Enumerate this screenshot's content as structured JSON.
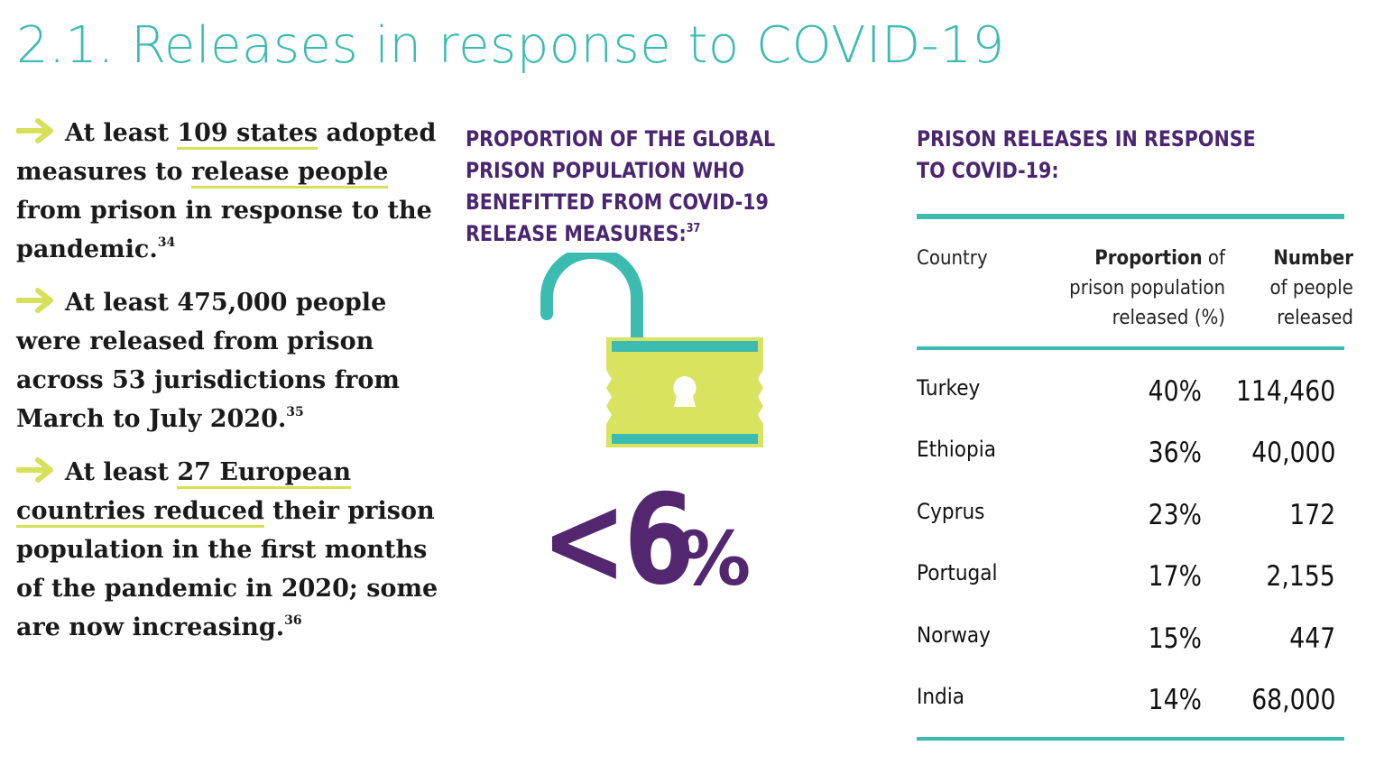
{
  "title": "2.1. Releases in response to COVID-19",
  "colors": {
    "teal": "#3cbcb0",
    "purple": "#4a2570",
    "lime": "#d6e159",
    "lime_fill": "#d8e35f"
  },
  "bullets": [
    {
      "lead": "At least ",
      "hl1": "109 states",
      "mid1": " adopted measures to ",
      "hl2": "release people",
      "tail": " from prison in response to the pandemic.",
      "ref": "34"
    },
    {
      "text": "At least 475,000 people were released from prison across 53 jurisdictions from March to July 2020.",
      "ref": "35"
    },
    {
      "lead": "At least ",
      "hl1": "27 European countries reduced",
      "tail": " their prison population in the first months of the pandemic in 2020; some are now increasing.",
      "ref": "36"
    }
  ],
  "middle": {
    "heading": "PROPORTION OF THE GLOBAL PRISON POPULATION WHO BENEFITTED FROM COVID-19 RELEASE MEASURES:",
    "ref": "37",
    "big_value": "<6",
    "big_unit": "%",
    "icon": "unlocked-padlock-icon"
  },
  "table": {
    "heading": "PRISON RELEASES IN RESPONSE TO COVID-19:",
    "col_country": "Country",
    "col_prop_bold": "Proportion",
    "col_prop_rest1": " of",
    "col_prop_rest2": "prison population",
    "col_prop_rest3": "released (%)",
    "col_num_bold": "Number",
    "col_num_rest1": "of people",
    "col_num_rest2": "released",
    "rows": [
      {
        "country": "Turkey",
        "proportion": "40%",
        "number": "114,460"
      },
      {
        "country": "Ethiopia",
        "proportion": "36%",
        "number": "40,000"
      },
      {
        "country": "Cyprus",
        "proportion": "23%",
        "number": "172"
      },
      {
        "country": "Portugal",
        "proportion": "17%",
        "number": "2,155"
      },
      {
        "country": "Norway",
        "proportion": "15%",
        "number": "447"
      },
      {
        "country": "India",
        "proportion": "14%",
        "number": "68,000"
      }
    ]
  }
}
